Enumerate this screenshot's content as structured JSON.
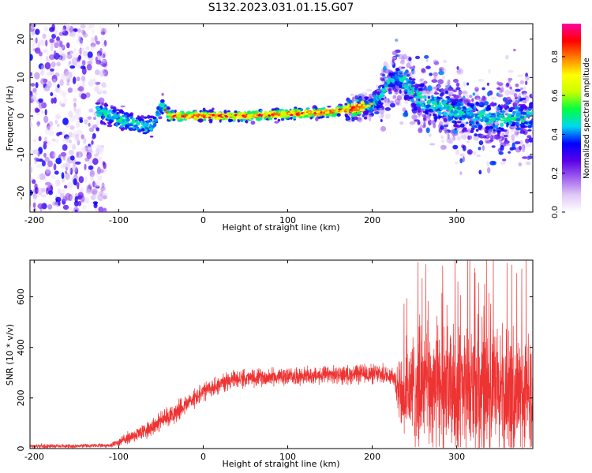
{
  "title": "S132.2023.031.01.15.G07",
  "chart_data": [
    {
      "type": "heatmap",
      "xlabel": "Height of straight line (km)",
      "ylabel": "Frequency (Hz)",
      "xlim": [
        -205,
        390
      ],
      "ylim": [
        -25,
        24
      ],
      "xticks": [
        -200,
        -100,
        0,
        100,
        200,
        300
      ],
      "yticks": [
        -20,
        -10,
        0,
        10,
        20
      ],
      "colorbar": {
        "label": "Normalized spectral amplitude",
        "ticks": [
          0.0,
          0.2,
          0.4,
          0.6,
          0.8
        ],
        "tick_labels": [
          "0.0",
          "0.2",
          "0.4",
          "0.6",
          "0.8"
        ],
        "range": [
          0,
          0.97
        ],
        "colormap": [
          "#ffffff",
          "#e0c8f5",
          "#a060ef",
          "#5a00e8",
          "#0000ff",
          "#00d8f0",
          "#00ff40",
          "#c8ff00",
          "#ffff00",
          "#ff8000",
          "#ff0000",
          "#ff00a0"
        ]
      },
      "ridge": {
        "x": [
          -120,
          -100,
          -80,
          -60,
          -50,
          -40,
          -20,
          0,
          50,
          100,
          150,
          180,
          200,
          210,
          220,
          230,
          260,
          300,
          340,
          390
        ],
        "y": [
          1,
          -1,
          -2,
          -3,
          3,
          0,
          0,
          0,
          0,
          0.5,
          1,
          2,
          3,
          5,
          9,
          10,
          4,
          1,
          -1,
          0
        ]
      }
    },
    {
      "type": "line",
      "xlabel": "Height of straight line (km)",
      "ylabel": "SNR (10 * v/v)",
      "xlim": [
        -205,
        390
      ],
      "ylim": [
        0,
        745
      ],
      "xticks": [
        -200,
        -100,
        0,
        100,
        200,
        300
      ],
      "yticks": [
        0,
        200,
        400,
        600
      ],
      "color": "#ee3333",
      "envelope": {
        "x": [
          -205,
          -150,
          -110,
          -90,
          -70,
          -50,
          -30,
          -10,
          10,
          30,
          60,
          100,
          150,
          200,
          225,
          235,
          245,
          260,
          300,
          350,
          390
        ],
        "mean": [
          10,
          10,
          12,
          40,
          70,
          110,
          150,
          200,
          240,
          270,
          280,
          285,
          290,
          295,
          290,
          200,
          230,
          240,
          230,
          220,
          220
        ],
        "spread": [
          8,
          8,
          8,
          25,
          35,
          40,
          40,
          40,
          40,
          35,
          35,
          35,
          35,
          40,
          40,
          150,
          220,
          240,
          250,
          260,
          250
        ]
      }
    }
  ]
}
